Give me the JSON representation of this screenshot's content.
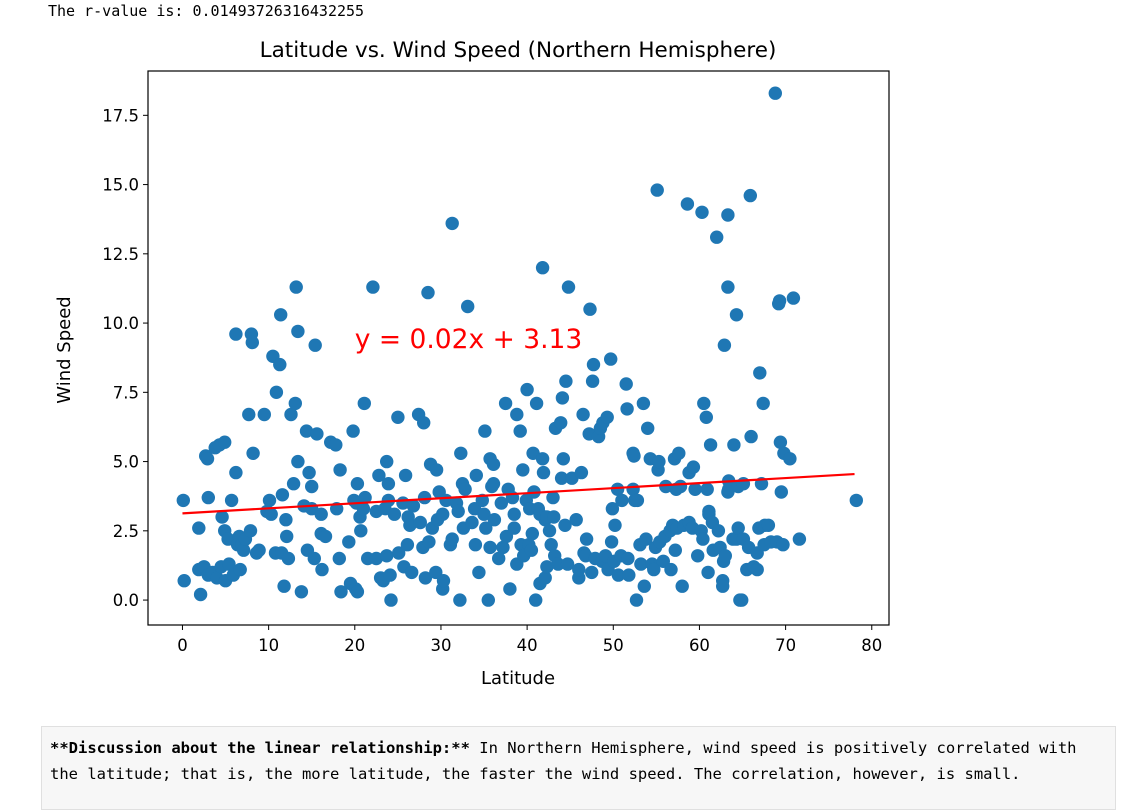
{
  "output": {
    "r_value_text": "The r-value is: 0.01493726316432255"
  },
  "chart_data": {
    "type": "scatter",
    "title": "Latitude vs. Wind Speed (Northern Hemisphere)",
    "xlabel": "Latitude",
    "ylabel": "Wind Speed",
    "xlim": [
      -4,
      82
    ],
    "ylim": [
      -0.9,
      19.1
    ],
    "xticks": [
      0,
      10,
      20,
      30,
      40,
      50,
      60,
      70,
      80
    ],
    "yticks": [
      0.0,
      2.5,
      5.0,
      7.5,
      10.0,
      12.5,
      15.0,
      17.5
    ],
    "xtick_labels": [
      "0",
      "10",
      "20",
      "30",
      "40",
      "50",
      "60",
      "70",
      "80"
    ],
    "ytick_labels": [
      "0.0",
      "2.5",
      "5.0",
      "7.5",
      "10.0",
      "12.5",
      "15.0",
      "17.5"
    ],
    "grid": false,
    "point_color": "#1f77b4",
    "regression": {
      "equation": "y = 0.02x + 3.13",
      "slope": 0.0182,
      "intercept": 3.13,
      "x_range": [
        0,
        78
      ],
      "color": "#ff0000",
      "label_position": [
        20,
        9.1
      ]
    },
    "points": [
      [
        0.1,
        3.6
      ],
      [
        0.2,
        0.7
      ],
      [
        1.9,
        2.6
      ],
      [
        1.9,
        1.1
      ],
      [
        2.1,
        0.2
      ],
      [
        2.5,
        1.2
      ],
      [
        2.7,
        5.2
      ],
      [
        2.9,
        5.1
      ],
      [
        3.0,
        3.7
      ],
      [
        3.0,
        0.9
      ],
      [
        3.5,
        1.0
      ],
      [
        3.8,
        5.5
      ],
      [
        4.0,
        0.8
      ],
      [
        4.3,
        5.6
      ],
      [
        4.5,
        1.2
      ],
      [
        4.6,
        3.0
      ],
      [
        4.9,
        5.7
      ],
      [
        4.9,
        2.5
      ],
      [
        5.0,
        0.7
      ],
      [
        5.3,
        2.2
      ],
      [
        5.4,
        1.3
      ],
      [
        5.7,
        3.6
      ],
      [
        5.9,
        0.9
      ],
      [
        6.2,
        4.6
      ],
      [
        6.2,
        9.6
      ],
      [
        6.4,
        2.0
      ],
      [
        6.6,
        2.3
      ],
      [
        6.7,
        1.1
      ],
      [
        6.9,
        2.0
      ],
      [
        7.1,
        1.8
      ],
      [
        7.3,
        2.2
      ],
      [
        7.7,
        6.7
      ],
      [
        7.9,
        2.5
      ],
      [
        8.0,
        9.6
      ],
      [
        8.1,
        9.3
      ],
      [
        8.2,
        5.3
      ],
      [
        8.6,
        1.7
      ],
      [
        8.9,
        1.8
      ],
      [
        9.5,
        6.7
      ],
      [
        9.8,
        3.2
      ],
      [
        10.1,
        3.6
      ],
      [
        10.3,
        3.1
      ],
      [
        10.5,
        8.8
      ],
      [
        10.8,
        1.7
      ],
      [
        10.9,
        7.5
      ],
      [
        11.3,
        8.5
      ],
      [
        11.4,
        10.3
      ],
      [
        11.5,
        1.7
      ],
      [
        11.6,
        3.8
      ],
      [
        11.8,
        0.5
      ],
      [
        12.0,
        2.9
      ],
      [
        12.1,
        2.3
      ],
      [
        12.3,
        1.5
      ],
      [
        12.6,
        6.7
      ],
      [
        12.9,
        4.2
      ],
      [
        13.1,
        7.1
      ],
      [
        13.2,
        11.3
      ],
      [
        13.4,
        9.7
      ],
      [
        13.4,
        5.0
      ],
      [
        13.8,
        0.3
      ],
      [
        14.1,
        3.4
      ],
      [
        14.4,
        6.1
      ],
      [
        14.5,
        1.8
      ],
      [
        14.7,
        4.6
      ],
      [
        15.0,
        4.1
      ],
      [
        15.0,
        3.3
      ],
      [
        15.3,
        1.5
      ],
      [
        15.4,
        9.2
      ],
      [
        15.6,
        6.0
      ],
      [
        16.1,
        3.1
      ],
      [
        16.1,
        2.4
      ],
      [
        16.2,
        1.1
      ],
      [
        16.6,
        2.3
      ],
      [
        17.2,
        5.7
      ],
      [
        17.8,
        5.6
      ],
      [
        17.9,
        3.3
      ],
      [
        18.2,
        1.5
      ],
      [
        18.3,
        4.7
      ],
      [
        18.4,
        0.3
      ],
      [
        19.3,
        2.1
      ],
      [
        19.5,
        0.6
      ],
      [
        19.8,
        6.1
      ],
      [
        19.9,
        3.6
      ],
      [
        20.2,
        3.5
      ],
      [
        20.1,
        0.4
      ],
      [
        20.3,
        4.2
      ],
      [
        20.3,
        0.3
      ],
      [
        20.6,
        3.0
      ],
      [
        20.7,
        2.5
      ],
      [
        21.0,
        3.3
      ],
      [
        21.1,
        7.1
      ],
      [
        21.2,
        3.7
      ],
      [
        21.5,
        1.5
      ],
      [
        22.1,
        11.3
      ],
      [
        22.5,
        1.5
      ],
      [
        22.5,
        3.2
      ],
      [
        22.8,
        4.5
      ],
      [
        23.0,
        0.8
      ],
      [
        23.3,
        0.7
      ],
      [
        23.5,
        3.3
      ],
      [
        23.7,
        5.0
      ],
      [
        23.7,
        1.6
      ],
      [
        23.9,
        4.2
      ],
      [
        23.9,
        3.6
      ],
      [
        24.1,
        0.9
      ],
      [
        24.2,
        0.0
      ],
      [
        24.6,
        3.1
      ],
      [
        25.0,
        6.6
      ],
      [
        25.1,
        1.7
      ],
      [
        25.6,
        3.5
      ],
      [
        25.7,
        1.2
      ],
      [
        25.9,
        4.5
      ],
      [
        26.1,
        2.0
      ],
      [
        26.2,
        3.0
      ],
      [
        26.4,
        2.7
      ],
      [
        26.6,
        1.0
      ],
      [
        26.8,
        3.4
      ],
      [
        27.4,
        6.7
      ],
      [
        27.6,
        2.8
      ],
      [
        27.9,
        1.9
      ],
      [
        28.0,
        6.4
      ],
      [
        28.1,
        3.7
      ],
      [
        28.2,
        0.8
      ],
      [
        28.5,
        11.1
      ],
      [
        28.6,
        2.1
      ],
      [
        28.8,
        4.9
      ],
      [
        29.0,
        2.6
      ],
      [
        29.4,
        1.0
      ],
      [
        29.5,
        4.7
      ],
      [
        29.6,
        2.9
      ],
      [
        29.8,
        3.9
      ],
      [
        30.2,
        3.1
      ],
      [
        30.2,
        0.4
      ],
      [
        30.3,
        0.7
      ],
      [
        30.6,
        3.6
      ],
      [
        31.1,
        2.0
      ],
      [
        31.3,
        2.2
      ],
      [
        31.3,
        13.6
      ],
      [
        31.8,
        3.5
      ],
      [
        32.0,
        3.2
      ],
      [
        32.2,
        0.0
      ],
      [
        32.3,
        5.3
      ],
      [
        32.5,
        4.2
      ],
      [
        32.6,
        2.6
      ],
      [
        32.8,
        4.0
      ],
      [
        33.1,
        10.6
      ],
      [
        33.6,
        2.8
      ],
      [
        33.9,
        3.3
      ],
      [
        34.0,
        2.0
      ],
      [
        34.1,
        4.5
      ],
      [
        34.4,
        1.0
      ],
      [
        34.8,
        3.6
      ],
      [
        35.0,
        3.1
      ],
      [
        35.1,
        6.1
      ],
      [
        35.2,
        2.6
      ],
      [
        35.5,
        0.0
      ],
      [
        35.7,
        1.9
      ],
      [
        35.7,
        5.1
      ],
      [
        35.9,
        4.1
      ],
      [
        36.1,
        4.9
      ],
      [
        36.1,
        4.2
      ],
      [
        36.2,
        2.9
      ],
      [
        36.7,
        1.5
      ],
      [
        37.0,
        3.5
      ],
      [
        37.2,
        1.9
      ],
      [
        37.5,
        7.1
      ],
      [
        37.6,
        2.3
      ],
      [
        37.8,
        4.0
      ],
      [
        38.0,
        0.4
      ],
      [
        38.3,
        3.7
      ],
      [
        38.5,
        3.1
      ],
      [
        38.5,
        2.6
      ],
      [
        38.8,
        6.7
      ],
      [
        38.8,
        1.3
      ],
      [
        39.2,
        6.1
      ],
      [
        39.3,
        2.0
      ],
      [
        39.5,
        4.7
      ],
      [
        39.6,
        1.6
      ],
      [
        39.9,
        3.6
      ],
      [
        40.0,
        7.6
      ],
      [
        40.2,
        2.0
      ],
      [
        40.3,
        3.3
      ],
      [
        40.5,
        1.8
      ],
      [
        40.6,
        2.4
      ],
      [
        40.7,
        5.3
      ],
      [
        40.8,
        3.9
      ],
      [
        41.0,
        0.0
      ],
      [
        41.1,
        7.1
      ],
      [
        41.3,
        3.3
      ],
      [
        41.5,
        3.1
      ],
      [
        41.5,
        0.6
      ],
      [
        41.8,
        12.0
      ],
      [
        41.8,
        5.1
      ],
      [
        41.9,
        4.6
      ],
      [
        42.1,
        2.9
      ],
      [
        42.1,
        0.8
      ],
      [
        42.3,
        1.2
      ],
      [
        42.3,
        3.0
      ],
      [
        42.6,
        2.5
      ],
      [
        42.8,
        2.0
      ],
      [
        43.0,
        3.7
      ],
      [
        43.1,
        3.0
      ],
      [
        43.2,
        1.6
      ],
      [
        43.3,
        6.2
      ],
      [
        43.6,
        1.3
      ],
      [
        43.9,
        6.4
      ],
      [
        44.0,
        4.4
      ],
      [
        44.1,
        7.3
      ],
      [
        44.2,
        5.1
      ],
      [
        44.4,
        2.7
      ],
      [
        44.5,
        7.9
      ],
      [
        44.7,
        1.3
      ],
      [
        44.8,
        11.3
      ],
      [
        45.2,
        4.4
      ],
      [
        45.7,
        2.9
      ],
      [
        46.0,
        0.8
      ],
      [
        46.0,
        1.1
      ],
      [
        46.3,
        4.6
      ],
      [
        46.5,
        6.7
      ],
      [
        46.6,
        1.7
      ],
      [
        46.8,
        1.6
      ],
      [
        46.9,
        2.2
      ],
      [
        47.2,
        6.0
      ],
      [
        47.3,
        10.5
      ],
      [
        47.5,
        1.0
      ],
      [
        47.6,
        7.9
      ],
      [
        47.7,
        8.5
      ],
      [
        47.9,
        1.5
      ],
      [
        48.3,
        5.9
      ],
      [
        48.5,
        6.2
      ],
      [
        48.7,
        1.4
      ],
      [
        48.8,
        6.4
      ],
      [
        49.1,
        1.6
      ],
      [
        49.3,
        6.6
      ],
      [
        49.4,
        1.1
      ],
      [
        49.7,
        8.7
      ],
      [
        49.8,
        2.1
      ],
      [
        49.9,
        3.3
      ],
      [
        50.1,
        1.4
      ],
      [
        50.2,
        2.7
      ],
      [
        50.5,
        4.0
      ],
      [
        50.6,
        0.9
      ],
      [
        50.9,
        1.6
      ],
      [
        51.0,
        3.6
      ],
      [
        51.5,
        7.8
      ],
      [
        51.6,
        6.9
      ],
      [
        51.7,
        1.5
      ],
      [
        51.8,
        0.9
      ],
      [
        52.3,
        4.0
      ],
      [
        52.3,
        5.3
      ],
      [
        52.4,
        5.2
      ],
      [
        52.5,
        3.6
      ],
      [
        52.7,
        0.0
      ],
      [
        52.8,
        3.6
      ],
      [
        53.1,
        2.0
      ],
      [
        53.2,
        1.3
      ],
      [
        53.5,
        7.1
      ],
      [
        53.6,
        0.5
      ],
      [
        53.8,
        2.2
      ],
      [
        54.0,
        6.2
      ],
      [
        54.3,
        5.1
      ],
      [
        54.5,
        1.3
      ],
      [
        54.7,
        1.1
      ],
      [
        54.9,
        1.9
      ],
      [
        55.1,
        14.8
      ],
      [
        55.2,
        4.7
      ],
      [
        55.3,
        5.0
      ],
      [
        55.4,
        2.1
      ],
      [
        55.8,
        1.4
      ],
      [
        56.0,
        2.3
      ],
      [
        56.1,
        4.1
      ],
      [
        56.6,
        2.5
      ],
      [
        56.7,
        1.1
      ],
      [
        56.9,
        2.7
      ],
      [
        57.1,
        5.1
      ],
      [
        57.2,
        1.8
      ],
      [
        57.3,
        4.0
      ],
      [
        57.4,
        2.6
      ],
      [
        57.6,
        5.3
      ],
      [
        57.8,
        4.1
      ],
      [
        58.0,
        0.5
      ],
      [
        58.2,
        2.7
      ],
      [
        58.6,
        14.3
      ],
      [
        58.8,
        4.6
      ],
      [
        58.8,
        2.8
      ],
      [
        59.2,
        2.6
      ],
      [
        59.3,
        4.8
      ],
      [
        59.5,
        4.0
      ],
      [
        59.8,
        1.6
      ],
      [
        60.2,
        2.5
      ],
      [
        60.3,
        14.0
      ],
      [
        60.4,
        2.2
      ],
      [
        60.5,
        7.1
      ],
      [
        60.8,
        6.6
      ],
      [
        60.9,
        4.0
      ],
      [
        61.0,
        1.0
      ],
      [
        61.1,
        3.1
      ],
      [
        61.1,
        3.2
      ],
      [
        61.3,
        5.6
      ],
      [
        61.5,
        2.8
      ],
      [
        61.6,
        1.8
      ],
      [
        62.0,
        13.1
      ],
      [
        62.2,
        2.5
      ],
      [
        62.4,
        1.9
      ],
      [
        62.7,
        0.7
      ],
      [
        62.7,
        0.5
      ],
      [
        62.8,
        1.4
      ],
      [
        62.9,
        9.2
      ],
      [
        63.0,
        1.6
      ],
      [
        63.3,
        13.9
      ],
      [
        63.3,
        11.3
      ],
      [
        63.3,
        3.9
      ],
      [
        63.4,
        4.3
      ],
      [
        63.4,
        4.0
      ],
      [
        63.9,
        2.2
      ],
      [
        64.0,
        5.6
      ],
      [
        64.3,
        10.3
      ],
      [
        64.3,
        2.2
      ],
      [
        64.5,
        2.6
      ],
      [
        64.5,
        4.1
      ],
      [
        64.7,
        0.0
      ],
      [
        64.9,
        0.0
      ],
      [
        65.1,
        4.2
      ],
      [
        65.1,
        2.2
      ],
      [
        65.5,
        1.1
      ],
      [
        65.7,
        1.9
      ],
      [
        65.9,
        14.6
      ],
      [
        66.0,
        5.9
      ],
      [
        66.3,
        1.2
      ],
      [
        66.7,
        1.7
      ],
      [
        66.7,
        1.1
      ],
      [
        66.9,
        2.6
      ],
      [
        67.0,
        8.2
      ],
      [
        67.2,
        4.2
      ],
      [
        67.4,
        7.1
      ],
      [
        67.5,
        2.0
      ],
      [
        67.6,
        2.7
      ],
      [
        68.0,
        2.7
      ],
      [
        68.3,
        2.1
      ],
      [
        68.8,
        18.3
      ],
      [
        69.0,
        2.1
      ],
      [
        69.2,
        10.7
      ],
      [
        69.3,
        10.8
      ],
      [
        69.4,
        5.7
      ],
      [
        69.5,
        3.9
      ],
      [
        69.7,
        2.0
      ],
      [
        69.8,
        5.3
      ],
      [
        70.5,
        5.1
      ],
      [
        70.9,
        10.9
      ],
      [
        71.6,
        2.2
      ],
      [
        78.2,
        3.6
      ]
    ]
  },
  "discussion": {
    "bold_text": "**Discussion about the linear relationship:**",
    "body_text": " In Northern Hemisphere, wind speed is positively correlated with the latitude; that is, the more latitude, the faster the wind speed. The correlation, however, is small."
  }
}
